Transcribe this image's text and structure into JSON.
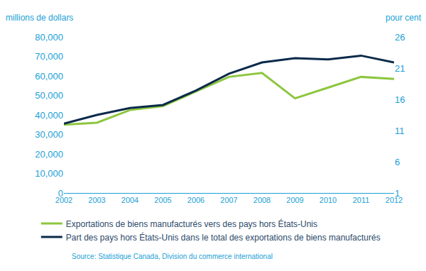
{
  "chart_data": {
    "type": "line",
    "ylabel": "millions de dollars",
    "y2label": "pour cent",
    "categories": [
      "2002",
      "2003",
      "2004",
      "2005",
      "2006",
      "2007",
      "2008",
      "2009",
      "2010",
      "2011",
      "2012"
    ],
    "series": [
      {
        "name": "Exportations de biens manufacturés vers des pays hors États-Unis",
        "color": "#8dc63f",
        "values": [
          35000,
          36000,
          42500,
          44500,
          52000,
          59500,
          61500,
          48500,
          54000,
          59500,
          58500
        ]
      },
      {
        "name": "Part des pays hors États-Unis dans le total des exportations de biens manufacturés",
        "color": "#0b2a4a",
        "axis": "y2",
        "values": [
          12.1,
          13.5,
          14.6,
          15.1,
          17.4,
          20.1,
          21.9,
          22.6,
          22.4,
          23.0,
          21.9
        ]
      }
    ],
    "ylim": [
      0,
      80000
    ],
    "yticks": [
      0,
      {
        "value": 10000,
        "label": "10,000"
      },
      {
        "value": 20000,
        "label": "20,000"
      },
      {
        "value": 30000,
        "label": "30,000"
      },
      {
        "value": 40000,
        "label": "40,000"
      },
      {
        "value": 50000,
        "label": "50,000"
      },
      {
        "value": 60000,
        "label": "60,000"
      },
      {
        "value": 70000,
        "label": "70,000"
      },
      {
        "value": 80000,
        "label": "80,000"
      }
    ],
    "y2lim": [
      1,
      26
    ],
    "y2ticks": [
      1,
      6,
      11,
      16,
      21,
      26
    ],
    "grid": false,
    "legend": "bottom",
    "annotations": [
      "Source: Statistique Canada, Division du commerce international"
    ]
  }
}
